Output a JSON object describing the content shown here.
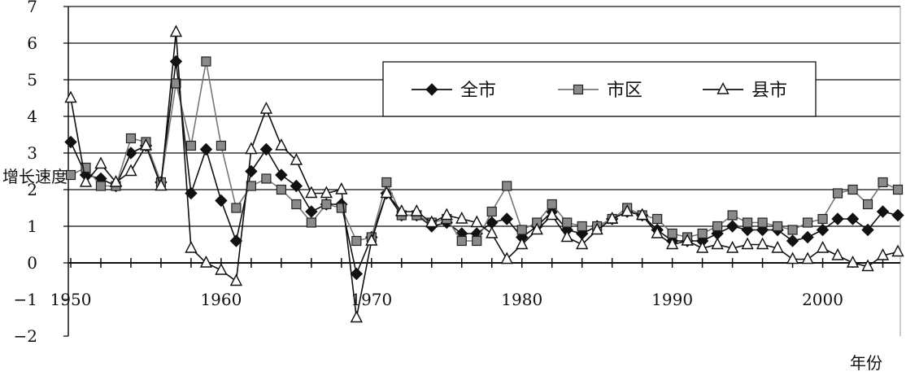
{
  "chart_data": {
    "type": "line",
    "title": "",
    "xlabel": "年份",
    "ylabel": "增长速度",
    "xlim": [
      1950,
      2005
    ],
    "ylim": [
      -2,
      7
    ],
    "y_ticks": [
      "7",
      "6",
      "5",
      "4",
      "3",
      "2",
      "1",
      "0",
      "−1",
      "−2"
    ],
    "x_tick_labels": [
      "1950",
      "1960",
      "1970",
      "1980",
      "1990",
      "2000"
    ],
    "grid": "horizontal",
    "legend_position": "top-right",
    "x": [
      1950,
      1951,
      1952,
      1953,
      1954,
      1955,
      1956,
      1957,
      1958,
      1959,
      1960,
      1961,
      1962,
      1963,
      1964,
      1965,
      1966,
      1967,
      1968,
      1969,
      1970,
      1971,
      1972,
      1973,
      1974,
      1975,
      1976,
      1977,
      1978,
      1979,
      1980,
      1981,
      1982,
      1983,
      1984,
      1985,
      1986,
      1987,
      1988,
      1989,
      1990,
      1991,
      1992,
      1993,
      1994,
      1995,
      1996,
      1997,
      1998,
      1999,
      2000,
      2001,
      2002,
      2003,
      2004,
      2005
    ],
    "series": [
      {
        "name": "全市",
        "marker": "diamond",
        "color": "#111111",
        "values": [
          3.3,
          2.4,
          2.3,
          2.1,
          3.0,
          3.2,
          2.2,
          5.5,
          1.9,
          3.1,
          1.7,
          0.6,
          2.5,
          3.1,
          2.4,
          2.1,
          1.4,
          1.6,
          1.6,
          -0.3,
          0.7,
          1.9,
          1.3,
          1.3,
          1.0,
          1.1,
          0.8,
          0.8,
          1.1,
          1.2,
          0.7,
          1.0,
          1.4,
          0.9,
          0.8,
          1.0,
          1.2,
          1.4,
          1.3,
          0.9,
          0.6,
          0.6,
          0.6,
          0.8,
          1.0,
          0.9,
          0.9,
          0.9,
          0.6,
          0.7,
          0.9,
          1.2,
          1.2,
          0.9,
          1.4,
          1.3
        ]
      },
      {
        "name": "市区",
        "marker": "square",
        "color": "#777777",
        "values": [
          2.4,
          2.6,
          2.1,
          2.1,
          3.4,
          3.3,
          2.2,
          4.9,
          3.2,
          5.5,
          3.2,
          1.5,
          2.1,
          2.3,
          2.0,
          1.6,
          1.1,
          1.6,
          1.5,
          0.6,
          0.7,
          2.2,
          1.3,
          1.3,
          1.1,
          1.2,
          0.6,
          0.6,
          1.4,
          2.1,
          0.9,
          1.1,
          1.6,
          1.1,
          1.0,
          1.0,
          1.2,
          1.5,
          1.3,
          1.2,
          0.8,
          0.7,
          0.8,
          1.0,
          1.3,
          1.1,
          1.1,
          1.0,
          0.9,
          1.1,
          1.2,
          1.9,
          2.0,
          1.6,
          2.2,
          2.0
        ]
      },
      {
        "name": "县市",
        "marker": "triangle",
        "color": "#111111",
        "values": [
          4.5,
          2.2,
          2.7,
          2.2,
          2.5,
          3.2,
          2.1,
          6.3,
          0.4,
          0.0,
          -0.2,
          -0.5,
          3.1,
          4.2,
          3.2,
          2.8,
          1.9,
          1.9,
          2.0,
          -1.5,
          0.6,
          1.9,
          1.4,
          1.4,
          1.1,
          1.3,
          1.2,
          1.1,
          0.8,
          0.1,
          0.5,
          0.9,
          1.3,
          0.7,
          0.5,
          0.9,
          1.2,
          1.4,
          1.3,
          0.8,
          0.5,
          0.6,
          0.4,
          0.5,
          0.4,
          0.5,
          0.5,
          0.4,
          0.1,
          0.1,
          0.4,
          0.2,
          0.0,
          -0.1,
          0.2,
          0.3
        ]
      }
    ]
  }
}
